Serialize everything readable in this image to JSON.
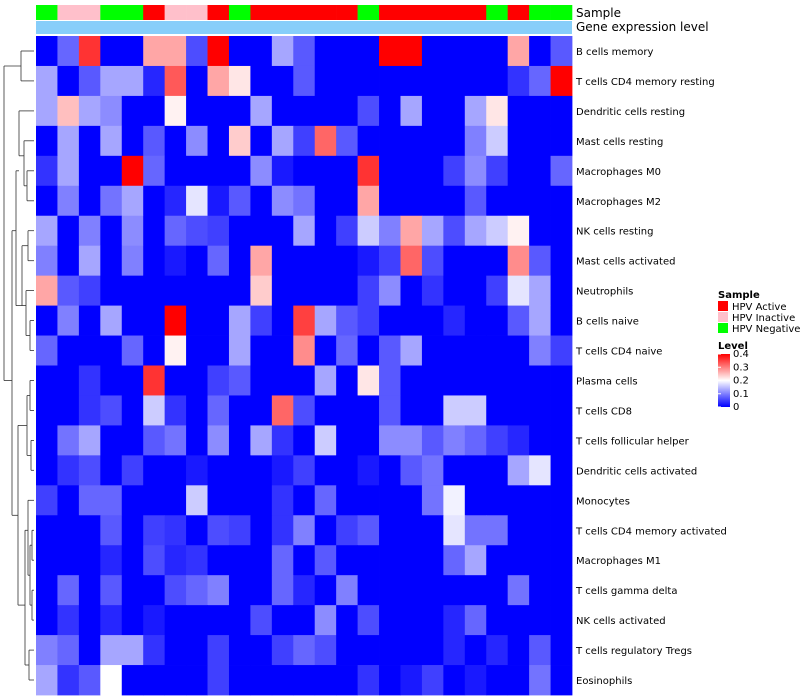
{
  "chart_data": {
    "type": "heatmap",
    "title": "",
    "annotation_tracks": [
      "Sample",
      "Gene expression level"
    ],
    "rows": [
      "B cells memory",
      "T cells CD4 memory resting",
      "Dendritic cells resting",
      "Mast cells resting",
      "Macrophages M0",
      "Macrophages M2",
      "NK cells resting",
      "Mast cells activated",
      "Neutrophils",
      "B cells naive",
      "T cells CD4 naive",
      "Plasma cells",
      "T cells CD8",
      "T cells follicular helper",
      "Dendritic cells activated",
      "Monocytes",
      "T cells CD4 memory activated",
      "Macrophages M1",
      "T cells gamma delta",
      "NK cells activated",
      "T cells regulatory  Tregs",
      "Eosinophils"
    ],
    "sample_groups": [
      "Negative",
      "Inactive",
      "Inactive",
      "Negative",
      "Negative",
      "Active",
      "Inactive",
      "Inactive",
      "Active",
      "Negative",
      "Active",
      "Active",
      "Active",
      "Active",
      "Active",
      "Negative",
      "Active",
      "Active",
      "Active",
      "Active",
      "Active",
      "Negative",
      "Active",
      "Negative",
      "Negative"
    ],
    "values": [
      [
        0.0,
        0.08,
        0.36,
        0.0,
        0.0,
        0.27,
        0.27,
        0.06,
        0.4,
        0.0,
        0.0,
        0.13,
        0.07,
        0.0,
        0.0,
        0.0,
        0.4,
        0.4,
        0.0,
        0.0,
        0.0,
        0.0,
        0.27,
        0.0,
        0.07
      ],
      [
        0.13,
        0.0,
        0.07,
        0.13,
        0.13,
        0.03,
        0.33,
        0.0,
        0.27,
        0.22,
        0.0,
        0.0,
        0.07,
        0.0,
        0.0,
        0.0,
        0.0,
        0.0,
        0.0,
        0.0,
        0.0,
        0.0,
        0.04,
        0.08,
        0.4
      ],
      [
        0.13,
        0.25,
        0.13,
        0.11,
        0.0,
        0.0,
        0.21,
        0.0,
        0.0,
        0.0,
        0.13,
        0.0,
        0.0,
        0.0,
        0.0,
        0.06,
        0.0,
        0.13,
        0.0,
        0.0,
        0.13,
        0.22,
        0.0,
        0.0,
        0.0
      ],
      [
        0.0,
        0.13,
        0.0,
        0.13,
        0.0,
        0.07,
        0.0,
        0.11,
        0.0,
        0.24,
        0.0,
        0.13,
        0.05,
        0.32,
        0.07,
        0.0,
        0.0,
        0.0,
        0.0,
        0.0,
        0.1,
        0.16,
        0.0,
        0.0,
        0.0
      ],
      [
        0.04,
        0.13,
        0.0,
        0.0,
        0.4,
        0.08,
        0.0,
        0.0,
        0.0,
        0.0,
        0.11,
        0.02,
        0.0,
        0.0,
        0.0,
        0.36,
        0.0,
        0.0,
        0.0,
        0.05,
        0.11,
        0.05,
        0.0,
        0.0,
        0.08
      ],
      [
        0.0,
        0.1,
        0.0,
        0.09,
        0.13,
        0.0,
        0.03,
        0.18,
        0.02,
        0.07,
        0.0,
        0.11,
        0.09,
        0.0,
        0.0,
        0.27,
        0.0,
        0.0,
        0.0,
        0.0,
        0.07,
        0.0,
        0.0,
        0.0,
        0.0
      ],
      [
        0.13,
        0.0,
        0.1,
        0.0,
        0.11,
        0.0,
        0.08,
        0.06,
        0.05,
        0.0,
        0.0,
        0.0,
        0.13,
        0.0,
        0.05,
        0.16,
        0.1,
        0.27,
        0.13,
        0.06,
        0.13,
        0.16,
        0.21,
        0.0,
        0.0
      ],
      [
        0.1,
        0.0,
        0.13,
        0.0,
        0.1,
        0.0,
        0.02,
        0.0,
        0.08,
        0.0,
        0.27,
        0.0,
        0.0,
        0.0,
        0.0,
        0.02,
        0.05,
        0.32,
        0.06,
        0.0,
        0.0,
        0.0,
        0.29,
        0.07,
        0.0
      ],
      [
        0.27,
        0.07,
        0.05,
        0.0,
        0.0,
        0.0,
        0.0,
        0.0,
        0.0,
        0.0,
        0.24,
        0.0,
        0.0,
        0.0,
        0.0,
        0.05,
        0.11,
        0.0,
        0.04,
        0.0,
        0.0,
        0.05,
        0.18,
        0.13,
        0.0
      ],
      [
        0.0,
        0.1,
        0.0,
        0.13,
        0.0,
        0.0,
        0.4,
        0.0,
        0.0,
        0.13,
        0.05,
        0.0,
        0.35,
        0.13,
        0.07,
        0.05,
        0.0,
        0.0,
        0.0,
        0.03,
        0.0,
        0.0,
        0.07,
        0.13,
        0.0
      ],
      [
        0.08,
        0.0,
        0.0,
        0.0,
        0.08,
        0.0,
        0.21,
        0.0,
        0.0,
        0.13,
        0.0,
        0.0,
        0.29,
        0.0,
        0.08,
        0.0,
        0.07,
        0.13,
        0.0,
        0.0,
        0.0,
        0.0,
        0.0,
        0.1,
        0.05
      ],
      [
        0.0,
        0.0,
        0.04,
        0.0,
        0.0,
        0.36,
        0.0,
        0.0,
        0.05,
        0.07,
        0.0,
        0.0,
        0.0,
        0.13,
        0.0,
        0.22,
        0.07,
        0.0,
        0.0,
        0.0,
        0.0,
        0.0,
        0.0,
        0.0,
        0.0
      ],
      [
        0.0,
        0.0,
        0.04,
        0.06,
        0.0,
        0.16,
        0.04,
        0.0,
        0.08,
        0.0,
        0.0,
        0.32,
        0.06,
        0.0,
        0.0,
        0.0,
        0.07,
        0.0,
        0.0,
        0.16,
        0.16,
        0.0,
        0.0,
        0.0,
        0.0
      ],
      [
        0.0,
        0.09,
        0.13,
        0.0,
        0.0,
        0.07,
        0.09,
        0.0,
        0.11,
        0.0,
        0.13,
        0.04,
        0.0,
        0.16,
        0.0,
        0.0,
        0.11,
        0.11,
        0.07,
        0.1,
        0.08,
        0.05,
        0.03,
        0.0,
        0.0
      ],
      [
        0.0,
        0.04,
        0.06,
        0.0,
        0.05,
        0.0,
        0.0,
        0.02,
        0.0,
        0.0,
        0.0,
        0.02,
        0.05,
        0.0,
        0.0,
        0.02,
        0.0,
        0.07,
        0.09,
        0.0,
        0.0,
        0.0,
        0.13,
        0.18,
        0.0
      ],
      [
        0.05,
        0.0,
        0.08,
        0.08,
        0.0,
        0.0,
        0.0,
        0.16,
        0.0,
        0.0,
        0.0,
        0.04,
        0.0,
        0.08,
        0.0,
        0.0,
        0.0,
        0.0,
        0.09,
        0.19,
        0.0,
        0.0,
        0.0,
        0.0,
        0.0
      ],
      [
        0.0,
        0.0,
        0.0,
        0.07,
        0.0,
        0.05,
        0.04,
        0.0,
        0.06,
        0.05,
        0.0,
        0.04,
        0.1,
        0.0,
        0.05,
        0.07,
        0.0,
        0.0,
        0.0,
        0.18,
        0.09,
        0.09,
        0.0,
        0.0,
        0.0
      ],
      [
        0.0,
        0.0,
        0.0,
        0.03,
        0.0,
        0.06,
        0.03,
        0.04,
        0.0,
        0.0,
        0.0,
        0.08,
        0.0,
        0.07,
        0.0,
        0.0,
        0.0,
        0.0,
        0.0,
        0.08,
        0.13,
        0.0,
        0.0,
        0.0,
        0.0
      ],
      [
        0.0,
        0.08,
        0.0,
        0.07,
        0.0,
        0.0,
        0.06,
        0.08,
        0.1,
        0.0,
        0.0,
        0.08,
        0.03,
        0.0,
        0.1,
        0.0,
        0.0,
        0.0,
        0.0,
        0.0,
        0.0,
        0.0,
        0.09,
        0.0,
        0.0
      ],
      [
        0.0,
        0.04,
        0.0,
        0.03,
        0.0,
        0.02,
        0.0,
        0.0,
        0.0,
        0.0,
        0.06,
        0.0,
        0.0,
        0.11,
        0.0,
        0.06,
        0.0,
        0.0,
        0.0,
        0.03,
        0.08,
        0.0,
        0.0,
        0.0,
        0.0
      ],
      [
        0.1,
        0.08,
        0.0,
        0.13,
        0.13,
        0.04,
        0.0,
        0.0,
        0.05,
        0.0,
        0.0,
        0.05,
        0.08,
        0.06,
        0.0,
        0.0,
        0.0,
        0.0,
        0.0,
        0.03,
        0.0,
        0.03,
        0.0,
        0.07,
        0.0
      ],
      [
        0.13,
        0.04,
        0.07,
        0.2,
        0.0,
        0.0,
        0.0,
        0.0,
        0.05,
        0.0,
        0.0,
        0.0,
        0.0,
        0.0,
        0.0,
        0.04,
        0.0,
        0.02,
        0.05,
        0.0,
        0.02,
        0.0,
        0.0,
        0.09,
        0.0
      ]
    ],
    "legend_sample": {
      "title": "Sample",
      "entries": [
        {
          "label": "HPV Active",
          "color": "#ff0000"
        },
        {
          "label": "HPV Inactive",
          "color": "#ffc0cb"
        },
        {
          "label": "HPV Negative",
          "color": "#00ff00"
        }
      ]
    },
    "legend_level": {
      "title": "Level",
      "range": [
        0,
        0.4
      ],
      "ticks": [
        "0.4",
        "0.3",
        "0.2",
        "0.1",
        "0"
      ]
    },
    "colors": {
      "low": "#0000ff",
      "mid": "#ffffff",
      "high": "#ff0000",
      "expression_track": "#87cefa",
      "group": {
        "Active": "#ff0000",
        "Inactive": "#ffc0cb",
        "Negative": "#00ff00"
      }
    }
  }
}
